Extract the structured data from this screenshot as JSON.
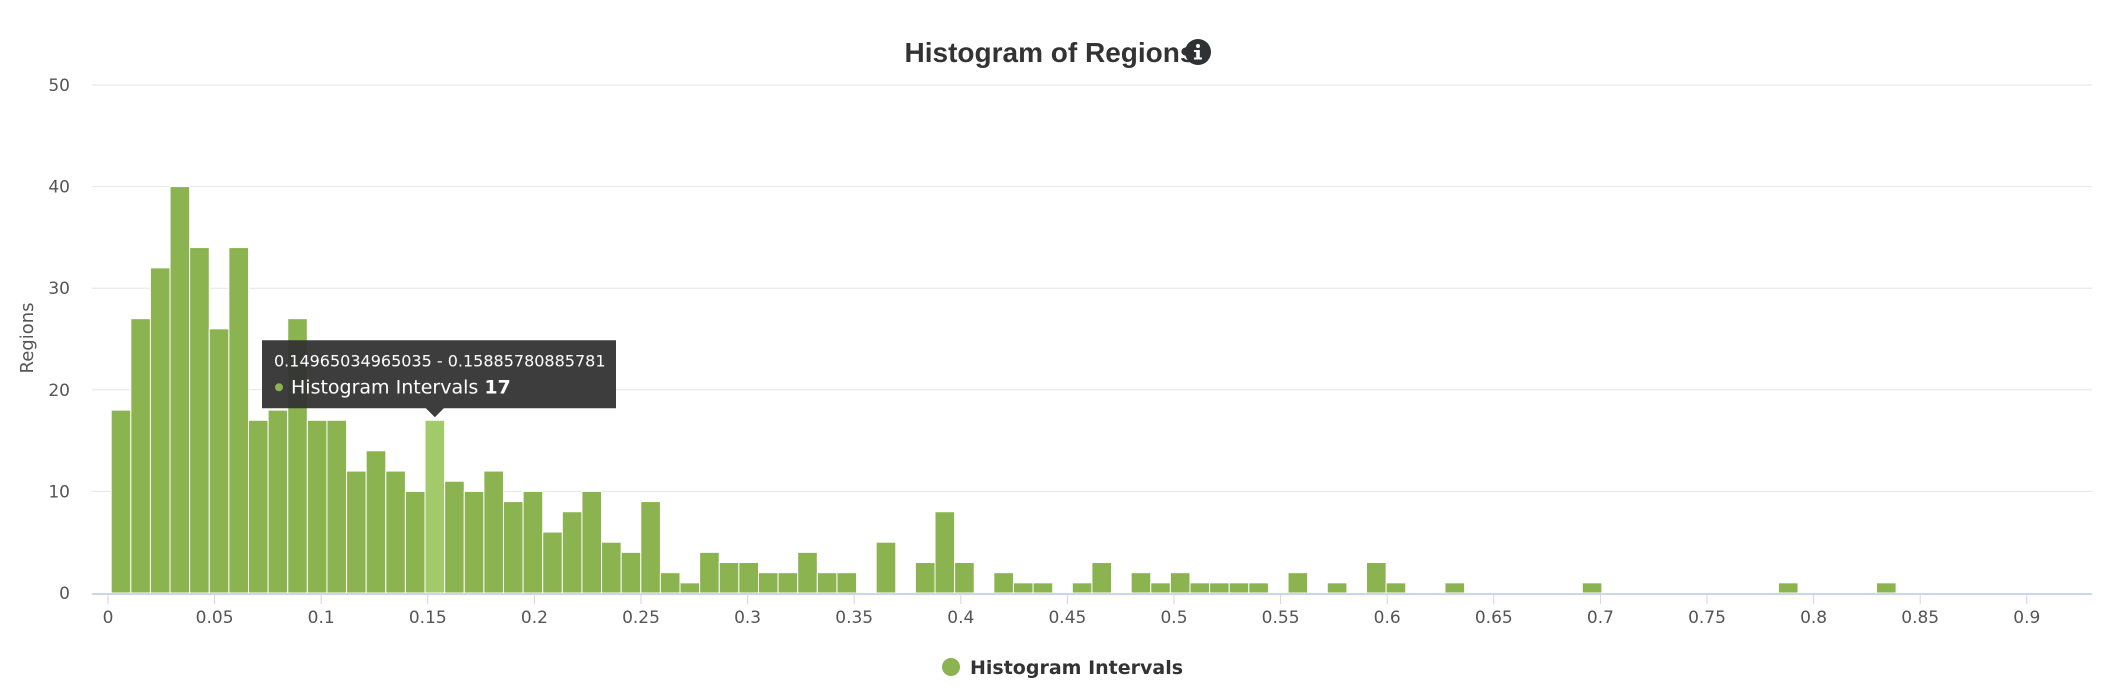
{
  "chart_data": {
    "type": "bar",
    "title": "Histogram of Regions",
    "info_icon": "info-icon",
    "ylabel": "Regions",
    "xlabel": "",
    "ylim": [
      0,
      50
    ],
    "yticks": [
      0,
      10,
      20,
      30,
      40,
      50
    ],
    "xlim": [
      0,
      0.925
    ],
    "xticks": [
      0,
      0.05,
      0.1,
      0.15,
      0.2,
      0.25,
      0.3,
      0.35,
      0.4,
      0.45,
      0.5,
      0.55,
      0.6,
      0.65,
      0.7,
      0.75,
      0.8,
      0.85,
      0.9
    ],
    "xtick_labels": [
      "0",
      "0.05",
      "0.1",
      "0.15",
      "0.2",
      "0.25",
      "0.3",
      "0.35",
      "0.4",
      "0.45",
      "0.5",
      "0.55",
      "0.6",
      "0.65",
      "0.7",
      "0.75",
      "0.8",
      "0.85",
      "0.9"
    ],
    "bin_start": 0.0015,
    "bin_width": 0.0092,
    "series": [
      {
        "name": "Histogram Intervals",
        "color": "#8bb34f",
        "highlight_color": "#a2c96a",
        "values": [
          18,
          27,
          32,
          40,
          34,
          26,
          34,
          17,
          18,
          27,
          17,
          17,
          12,
          14,
          12,
          10,
          17,
          11,
          10,
          12,
          9,
          10,
          6,
          8,
          10,
          5,
          4,
          9,
          2,
          1,
          4,
          3,
          3,
          2,
          2,
          4,
          2,
          2,
          0,
          5,
          0,
          3,
          8,
          3,
          0,
          2,
          1,
          1,
          0,
          1,
          3,
          0,
          2,
          1,
          2,
          1,
          1,
          1,
          1,
          0,
          2,
          0,
          1,
          0,
          3,
          1,
          0,
          0,
          1,
          0,
          0,
          0,
          0,
          0,
          0,
          1,
          0,
          0,
          0,
          0,
          0,
          0,
          0,
          0,
          0,
          1,
          0,
          0,
          0,
          0,
          1,
          0,
          0,
          0,
          0,
          0,
          0,
          0,
          0,
          0,
          0,
          0,
          0,
          0
        ]
      }
    ],
    "tooltip": {
      "visible": true,
      "bar_index": 16,
      "range_label": "0.14965034965035 - 0.15885780885781",
      "series_name": "Histogram Intervals",
      "value": "17"
    },
    "legend": {
      "position": "bottom-center",
      "label": "Histogram Intervals"
    },
    "grid": true
  }
}
